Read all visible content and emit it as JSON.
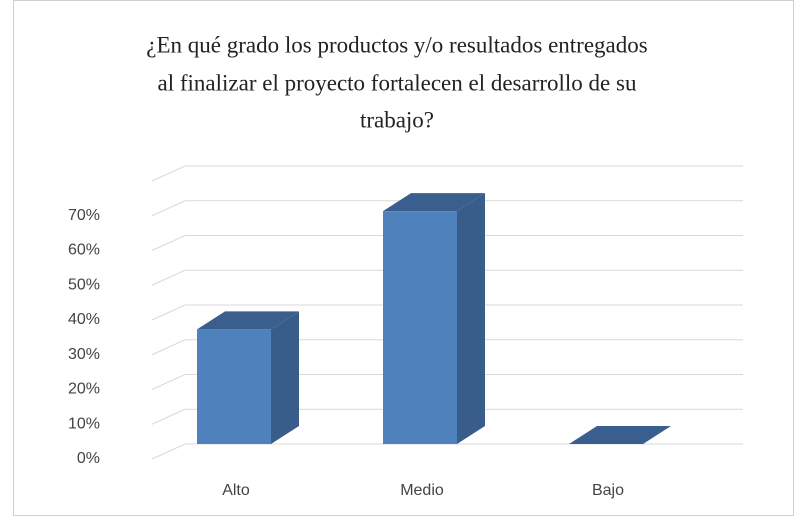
{
  "chart_data": {
    "type": "bar3d",
    "title": [
      "¿En qué grado los productos y/o resultados entregados",
      "al finalizar el proyecto fortalecen el desarrollo de su",
      "trabajo?"
    ],
    "categories": [
      "Alto",
      "Medio",
      "Bajo"
    ],
    "values": [
      33,
      67,
      0
    ],
    "color": "#4f81bd",
    "ylim": [
      0,
      80
    ],
    "yticks": [
      {
        "value": 0,
        "label": "0%"
      },
      {
        "value": 10,
        "label": "10%"
      },
      {
        "value": 20,
        "label": "20%"
      },
      {
        "value": 30,
        "label": "30%"
      },
      {
        "value": 40,
        "label": "40%"
      },
      {
        "value": 50,
        "label": "50%"
      },
      {
        "value": 60,
        "label": "60%"
      },
      {
        "value": 70,
        "label": "70%"
      }
    ],
    "grid": true
  }
}
